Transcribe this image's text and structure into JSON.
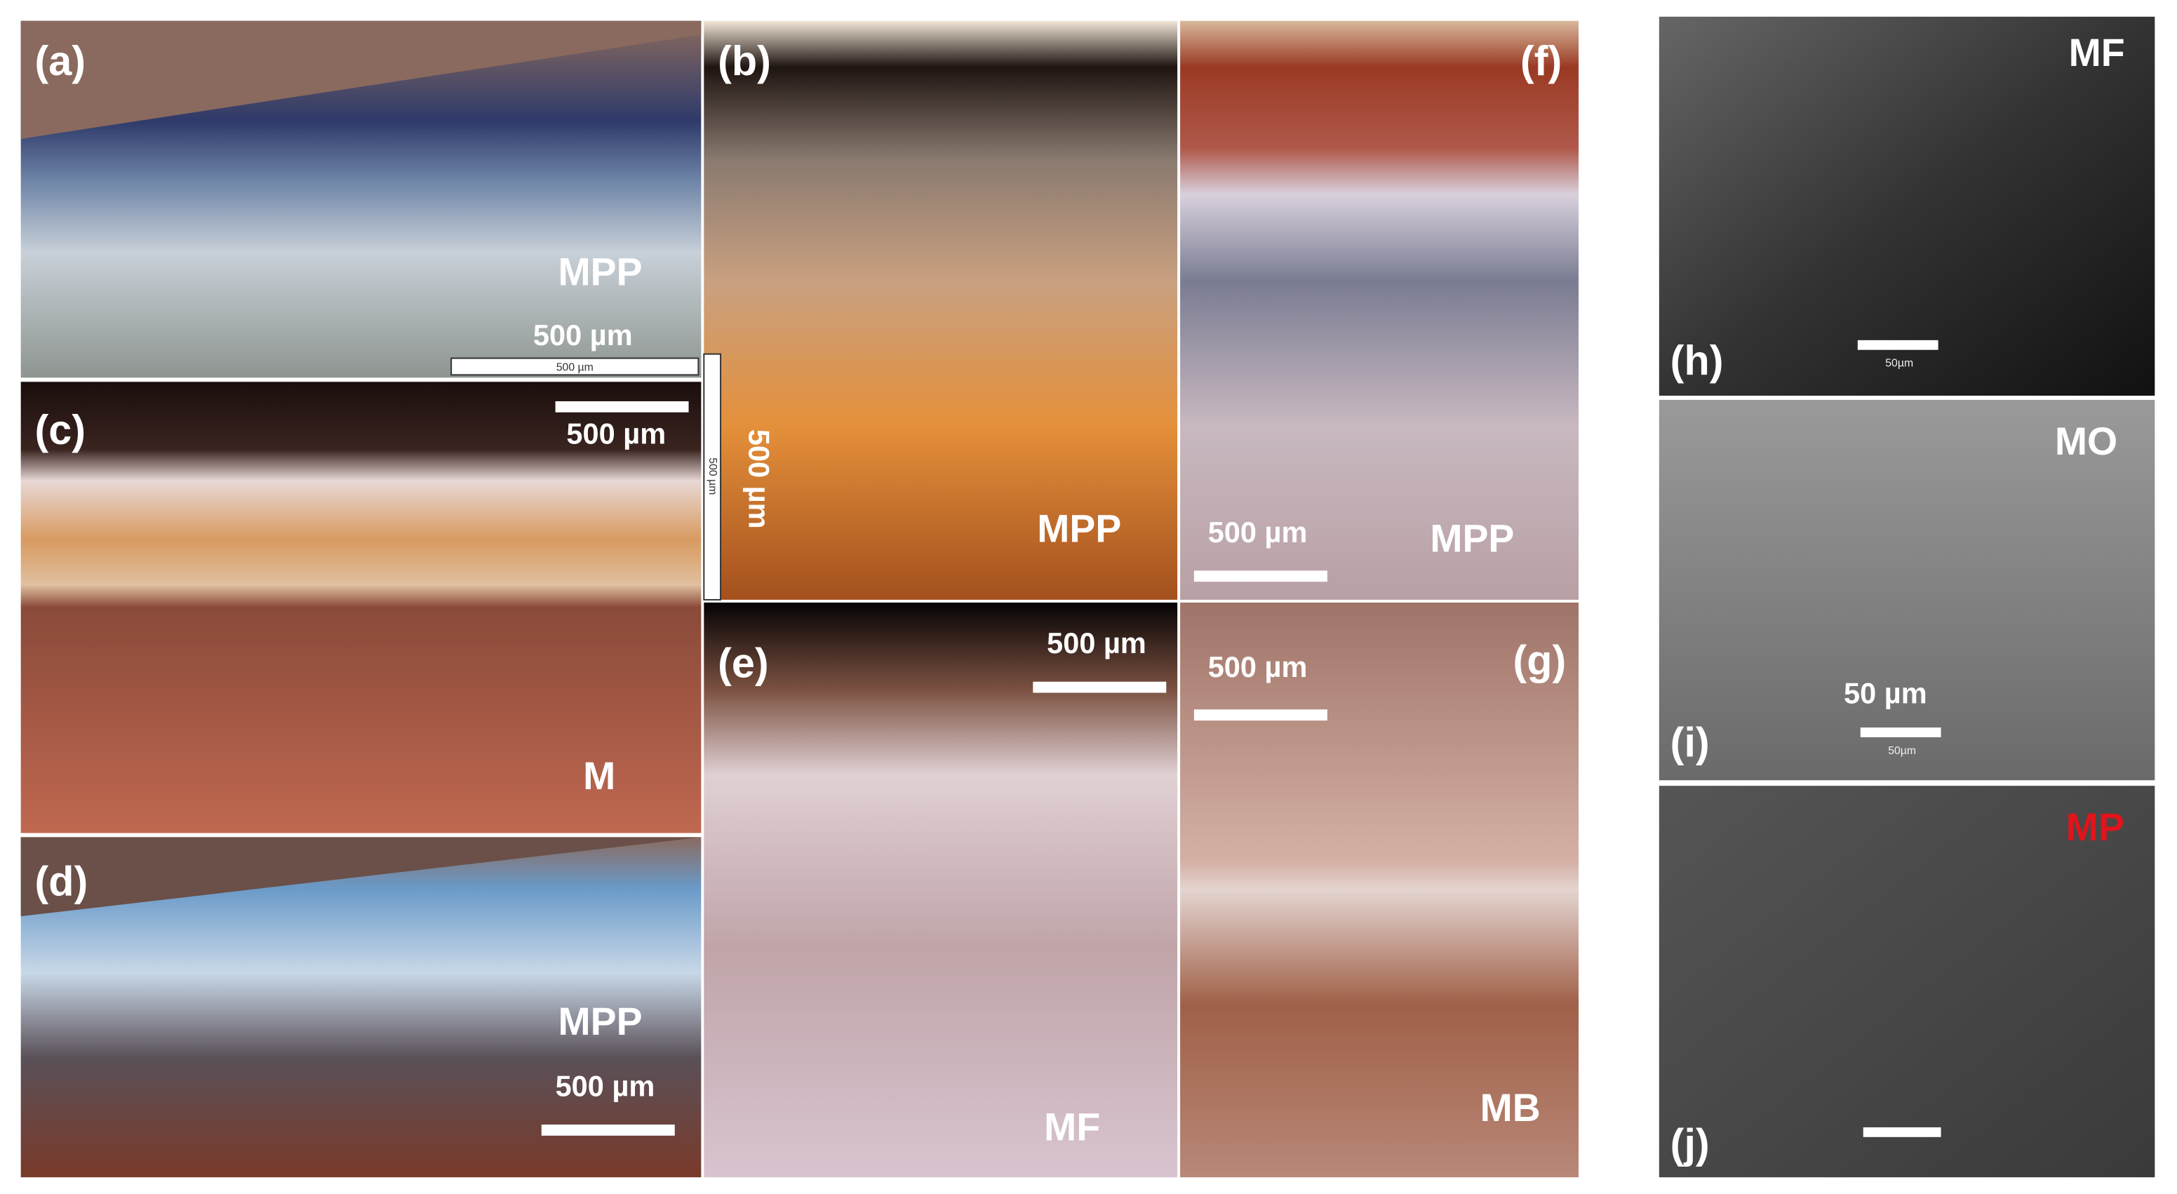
{
  "panels": [
    {
      "label": "(a)",
      "tag": "MPP",
      "scale": "500 µm",
      "scale_small": "500 µm"
    },
    {
      "label": "(b)",
      "tag": "MPP",
      "scale": "500 µm",
      "scale_small": "500 µm"
    },
    {
      "label": "(c)",
      "tag": "M",
      "scale": "500 µm"
    },
    {
      "label": "(d)",
      "tag": "MPP",
      "scale": "500 µm"
    },
    {
      "label": "(e)",
      "tag": "MF",
      "scale": "500 µm"
    },
    {
      "label": "(f)",
      "tag": "MPP",
      "scale": "500 µm"
    },
    {
      "label": "(g)",
      "tag": "MB",
      "scale": "500 µm"
    },
    {
      "label": "(h)",
      "tag": "MF",
      "scale_small": "50µm"
    },
    {
      "label": "(i)",
      "tag": "MO",
      "scale": "50 µm",
      "scale_small": "50µm"
    },
    {
      "label": "(j)",
      "tag": "MP"
    }
  ]
}
